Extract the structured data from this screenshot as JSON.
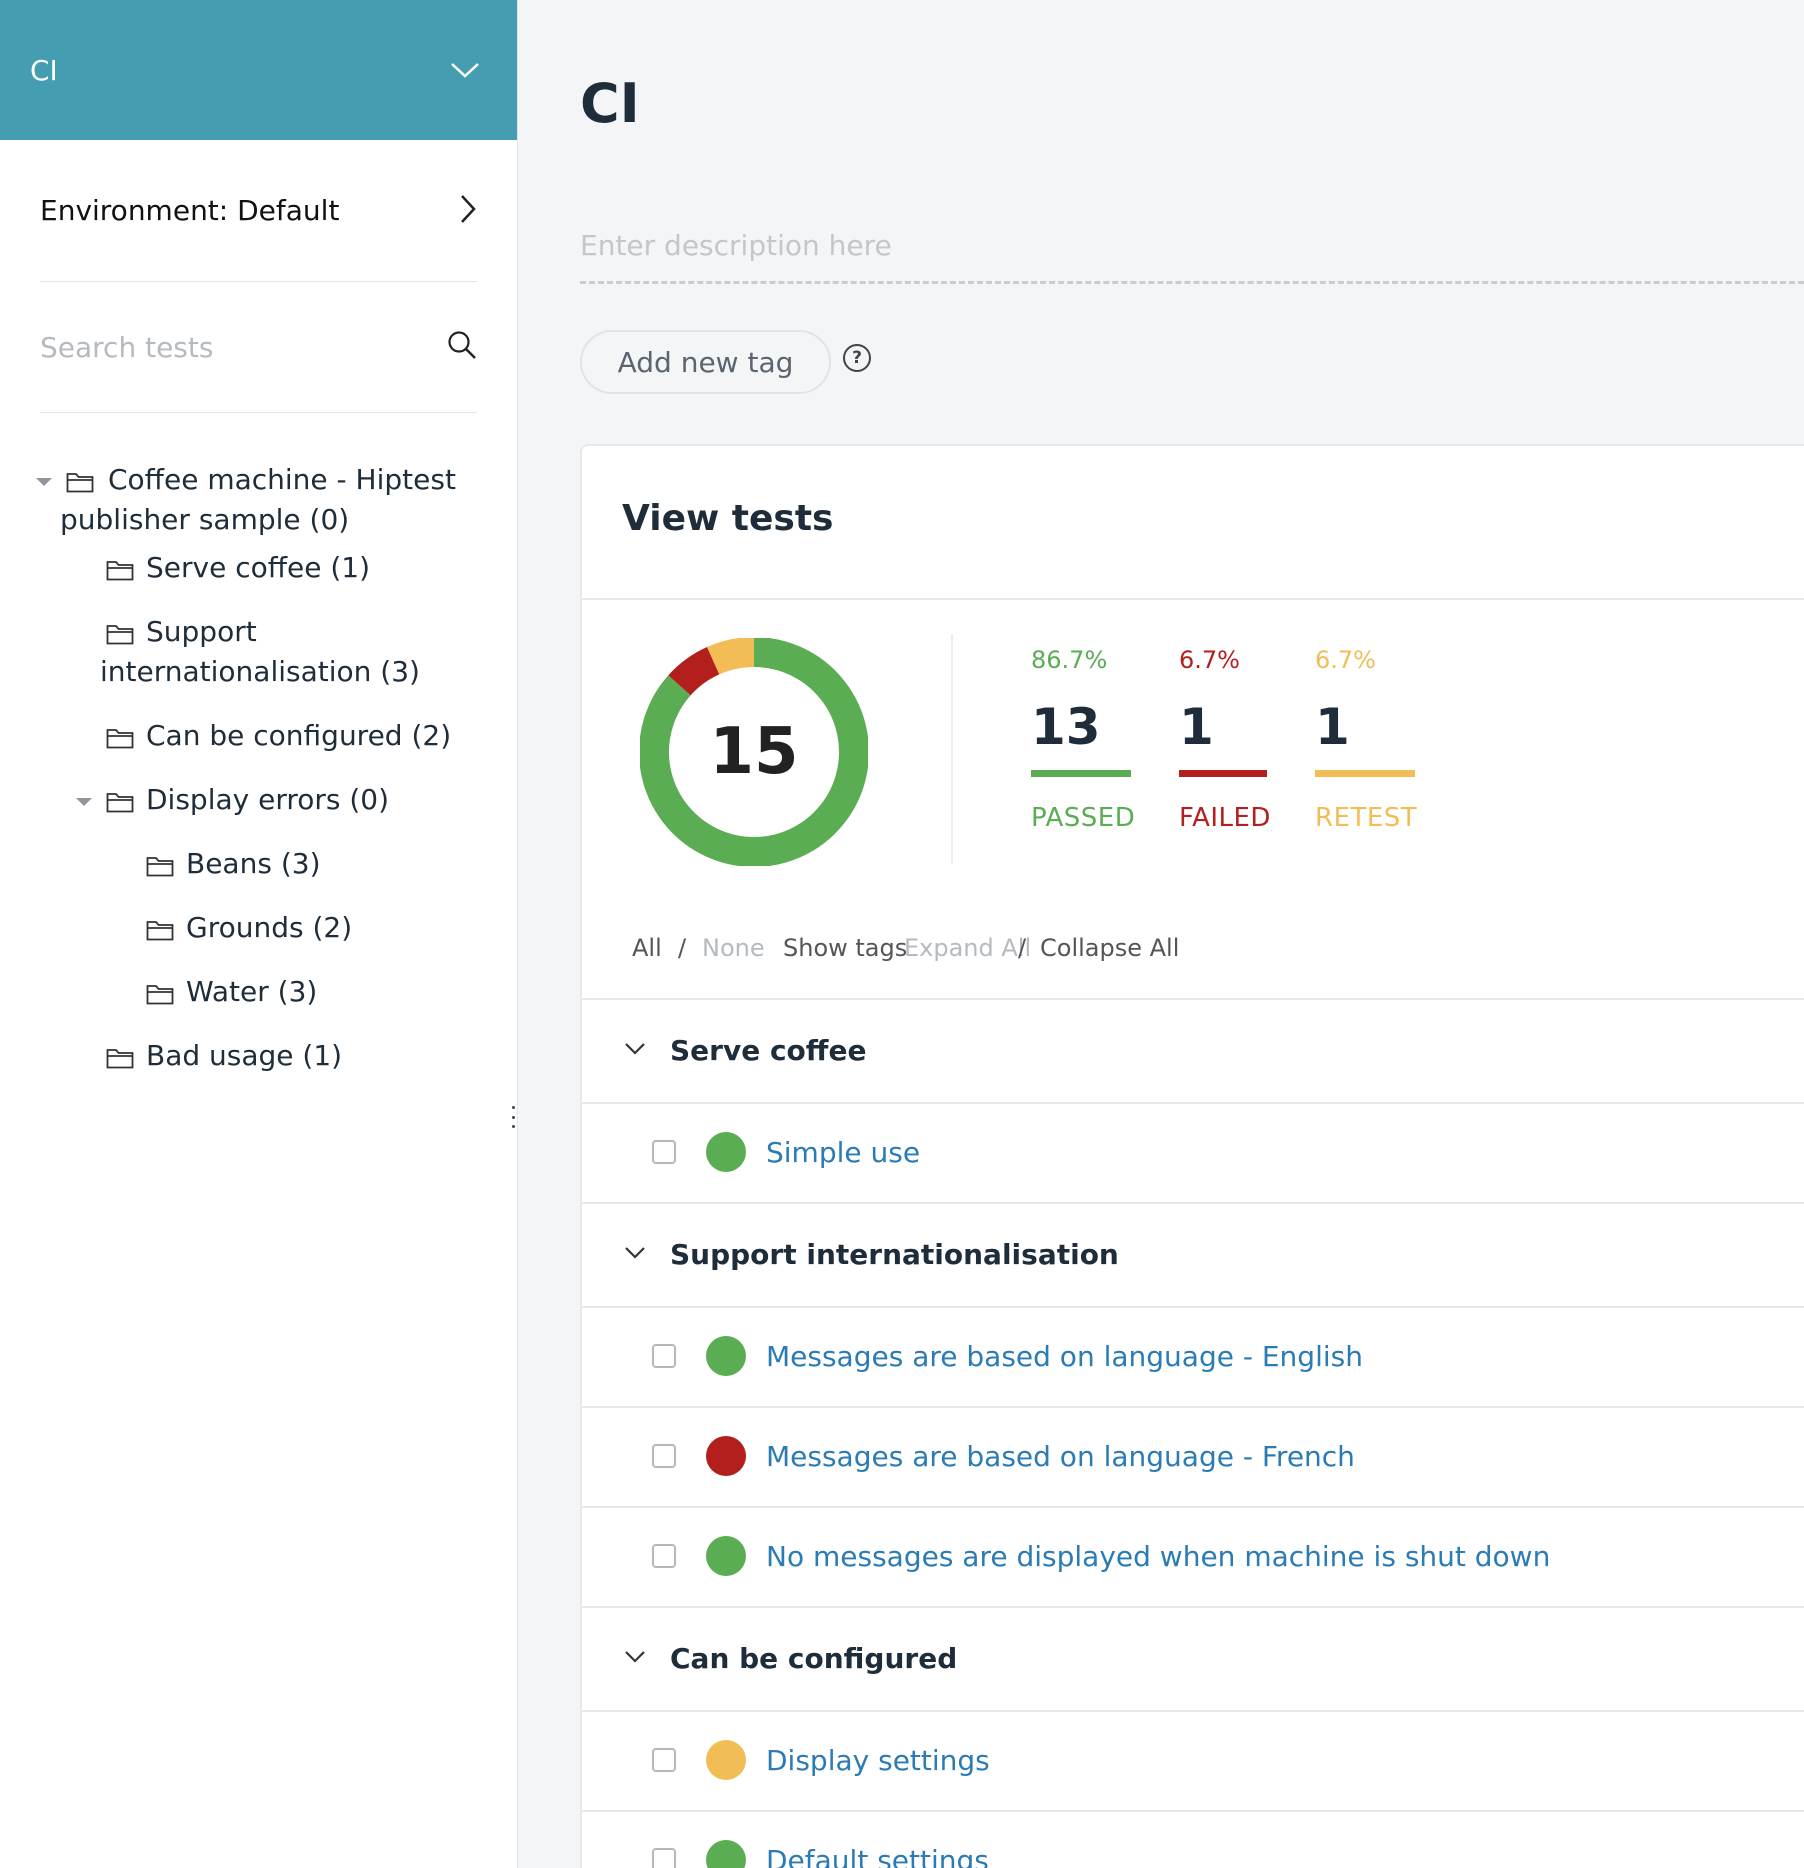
{
  "sidebar": {
    "project_name": "CI",
    "environment_label": "Environment: Default",
    "search_placeholder": "Search tests",
    "tree": [
      {
        "label": "Coffee machine - Hiptest",
        "label2": "publisher sample (0)"
      },
      {
        "label": "Serve coffee (1)"
      },
      {
        "label": "Support",
        "label2": "internationalisation (3)"
      },
      {
        "label": "Can be configured (2)"
      },
      {
        "label": "Display errors (0)"
      },
      {
        "label": "Beans (3)"
      },
      {
        "label": "Grounds (2)"
      },
      {
        "label": "Water (3)"
      },
      {
        "label": "Bad usage (1)"
      }
    ]
  },
  "main": {
    "title": "CI",
    "description_placeholder": "Enter description here",
    "add_tag_label": "Add new tag",
    "help_glyph": "?"
  },
  "card": {
    "title": "View tests",
    "total": "15",
    "stats": [
      {
        "pct": "86.7%",
        "count": "13",
        "label": "PASSED",
        "color": "#5aad52",
        "fraction": 0.867
      },
      {
        "pct": "6.7%",
        "count": "1",
        "label": "FAILED",
        "color": "#b21f1c",
        "fraction": 0.067
      },
      {
        "pct": "6.7%",
        "count": "1",
        "label": "RETEST",
        "color": "#f2bd55",
        "fraction": 0.067
      }
    ],
    "filters": {
      "all": "All",
      "slash": "/",
      "none": "None",
      "show_tags": "Show tags",
      "expand_all": "Expand All",
      "collapse_all": "Collapse All"
    }
  },
  "sections": [
    {
      "title": "Serve coffee",
      "tests": [
        {
          "name": "Simple use",
          "status": "passed"
        }
      ]
    },
    {
      "title": "Support internationalisation",
      "tests": [
        {
          "name": "Messages are based on language - English",
          "status": "passed"
        },
        {
          "name": "Messages are based on language - French",
          "status": "failed"
        },
        {
          "name": "No messages are displayed when machine is shut down",
          "status": "passed"
        }
      ]
    },
    {
      "title": "Can be configured",
      "tests": [
        {
          "name": "Display settings",
          "status": "retest"
        },
        {
          "name": "Default settings",
          "status": "passed"
        }
      ]
    }
  ],
  "status_colors": {
    "passed": "#5aad52",
    "failed": "#b21f1c",
    "retest": "#f2bd55"
  },
  "icons": {
    "project_menu": "chevron-down-icon",
    "environment": "chevron-right-icon",
    "search": "search-icon",
    "folder": "folder-icon",
    "section_toggle": "chevron-down-icon",
    "help": "question-circle-icon"
  }
}
